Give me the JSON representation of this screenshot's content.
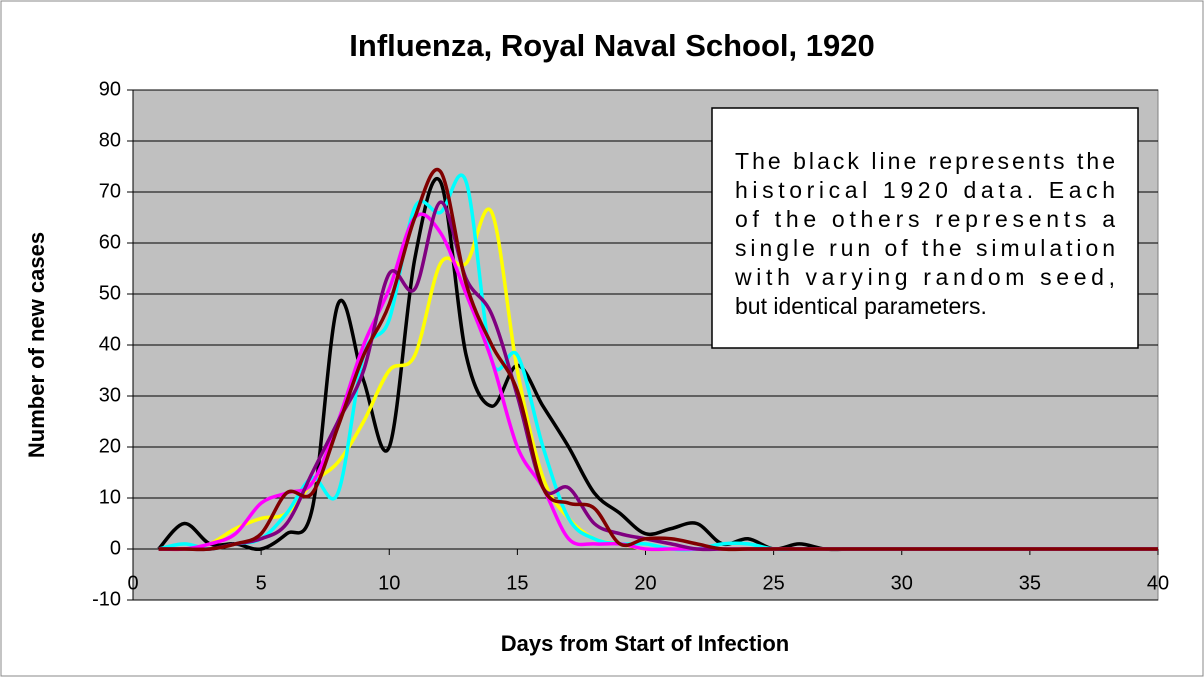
{
  "chart_data": {
    "type": "line",
    "title": "Influenza, Royal Naval School, 1920",
    "x_label": "Days from Start of Infection",
    "y_label": "Number of new cases",
    "annotation": [
      "The black line represents the",
      "historical 1920 data.  Each",
      "of the others represents a",
      "single run of the simulation",
      "with varying random seed,",
      "but identical parameters."
    ],
    "x": [
      1,
      2,
      3,
      4,
      5,
      6,
      7,
      8,
      9,
      10,
      11,
      12,
      13,
      14,
      15,
      16,
      17,
      18,
      19,
      20,
      21,
      22,
      23,
      24,
      25,
      26,
      27,
      28,
      29,
      30,
      31,
      32,
      33,
      34,
      35,
      36,
      37,
      38,
      39,
      40
    ],
    "series": [
      {
        "color": "#000000",
        "values": [
          0,
          5,
          1,
          1,
          0,
          3,
          8,
          48,
          33,
          20,
          57,
          72,
          38,
          28,
          36,
          28,
          20,
          11,
          7,
          3,
          4,
          5,
          1,
          2,
          0,
          1,
          0,
          0,
          0,
          0,
          0,
          0,
          0,
          0,
          0,
          0,
          0,
          0,
          0,
          0
        ]
      },
      {
        "color": "#ffff00",
        "values": [
          0,
          0,
          1,
          4,
          6,
          7,
          13,
          17,
          25,
          35,
          38,
          56,
          56,
          66,
          35,
          14,
          6,
          2,
          1,
          0,
          0,
          0,
          0,
          0,
          0,
          0,
          0,
          0,
          0,
          0,
          0,
          0,
          0,
          0,
          0,
          0,
          0,
          0,
          0,
          0
        ]
      },
      {
        "color": "#00ffff",
        "values": [
          0,
          1,
          0,
          1,
          2,
          7,
          14,
          11,
          38,
          45,
          67,
          66,
          72,
          37,
          38,
          20,
          6,
          2,
          1,
          1,
          0,
          0,
          1,
          1,
          0,
          0,
          0,
          0,
          0,
          0,
          0,
          0,
          0,
          0,
          0,
          0,
          0,
          0,
          0,
          0
        ]
      },
      {
        "color": "#ff00ff",
        "values": [
          0,
          0,
          1,
          3,
          9,
          11,
          13,
          25,
          40,
          51,
          65,
          62,
          50,
          37,
          20,
          12,
          2,
          1,
          1,
          0,
          0,
          0,
          0,
          0,
          0,
          0,
          0,
          0,
          0,
          0,
          0,
          0,
          0,
          0,
          0,
          0,
          0,
          0,
          0,
          0
        ]
      },
      {
        "color": "#800080",
        "values": [
          0,
          0,
          0,
          1,
          2,
          5,
          15,
          25,
          35,
          54,
          51,
          68,
          53,
          46,
          30,
          12,
          12,
          5,
          3,
          2,
          1,
          0,
          0,
          0,
          0,
          0,
          0,
          0,
          0,
          0,
          0,
          0,
          0,
          0,
          0,
          0,
          0,
          0,
          0,
          0
        ]
      },
      {
        "color": "#800000",
        "values": [
          0,
          0,
          0,
          1,
          3,
          11,
          11,
          24,
          38,
          48,
          65,
          74,
          52,
          40,
          31,
          12,
          9,
          8,
          1,
          2,
          2,
          1,
          0,
          0,
          0,
          0,
          0,
          0,
          0,
          0,
          0,
          0,
          0,
          0,
          0,
          0,
          0,
          0,
          0,
          0
        ]
      }
    ],
    "xlim": [
      0,
      40
    ],
    "xticks": [
      0,
      5,
      10,
      15,
      20,
      25,
      30,
      35,
      40
    ],
    "ylim": [
      -10,
      90
    ],
    "yticks": [
      -10,
      0,
      10,
      20,
      30,
      40,
      50,
      60,
      70,
      80,
      90
    ],
    "grid": true,
    "plot_background": "#c0c0c0"
  }
}
